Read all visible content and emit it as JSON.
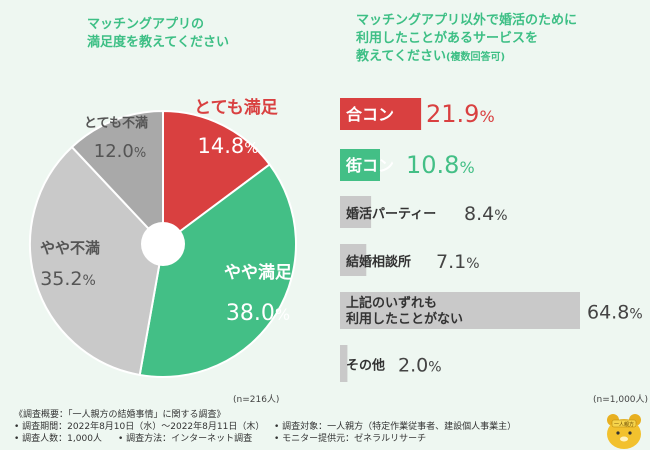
{
  "pie": {
    "title": "マッチングアプリの\n満足度を教えてください",
    "n_note": "(n=216人)",
    "slices": [
      {
        "label": "とても満足",
        "value_num": "14.8",
        "value_pct": "%",
        "value": 14.8,
        "color": "#d94040"
      },
      {
        "label": "やや満足",
        "value_num": "38.0",
        "value_pct": "%",
        "value": 38.0,
        "color": "#43bf86"
      },
      {
        "label": "やや不満",
        "value_num": "35.2",
        "value_pct": "%",
        "value": 35.2,
        "color": "#c9c9c9"
      },
      {
        "label": "とても不満",
        "value_num": "12.0",
        "value_pct": "%",
        "value": 12.0,
        "color": "#a9a9a9"
      }
    ]
  },
  "bars": {
    "title_main": "マッチングアプリ以外で婚活のために\n利用したことがあるサービスを\n教えてください",
    "title_note": "(複数回答可)",
    "n_note": "(n=1,000人)",
    "items": [
      {
        "label": "合コン",
        "value_num": "21.9",
        "value_pct": "%",
        "value": 21.9,
        "color": "#d94040",
        "highlight": true
      },
      {
        "label": "街コン",
        "value_num": "10.8",
        "value_pct": "%",
        "value": 10.8,
        "color": "#43bf86",
        "highlight": true
      },
      {
        "label": "婚活パーティー",
        "value_num": "8.4",
        "value_pct": "%",
        "value": 8.4,
        "color": "#c9c9c9",
        "highlight": false
      },
      {
        "label": "結婚相談所",
        "value_num": "7.1",
        "value_pct": "%",
        "value": 7.1,
        "color": "#c9c9c9",
        "highlight": false
      },
      {
        "label": "上記のいずれも\n利用したことがない",
        "value_num": "64.8",
        "value_pct": "%",
        "value": 64.8,
        "color": "#c9c9c9",
        "highlight": false
      },
      {
        "label": "その他",
        "value_num": "2.0",
        "value_pct": "%",
        "value": 2.0,
        "color": "#c9c9c9",
        "highlight": false
      }
    ]
  },
  "chart_data": [
    {
      "type": "pie",
      "title": "マッチングアプリの満足度を教えてください",
      "categories": [
        "とても満足",
        "やや満足",
        "やや不満",
        "とても不満"
      ],
      "values": [
        14.8,
        38.0,
        35.2,
        12.0
      ],
      "colors": [
        "#d94040",
        "#43bf86",
        "#c9c9c9",
        "#a9a9a9"
      ],
      "note": "(n=216人)"
    },
    {
      "type": "bar",
      "title": "マッチングアプリ以外で婚活のために利用したことがあるサービスを教えてください(複数回答可)",
      "categories": [
        "合コン",
        "街コン",
        "婚活パーティー",
        "結婚相談所",
        "上記のいずれも利用したことがない",
        "その他"
      ],
      "values": [
        21.9,
        10.8,
        8.4,
        7.1,
        64.8,
        2.0
      ],
      "note": "(n=1,000人)"
    }
  ],
  "footer": {
    "heading": "《調査概要：「一人親方の結婚事情」に関する調査》",
    "period": "• 調査期間：2022年8月10日（水）〜2022年8月11日（木）",
    "people": "• 調査人数：1,000人",
    "method": "• 調査方法：インターネット調査",
    "target": "• 調査対象：一人親方（特定作業従事者、建設個人事業主）",
    "provider": "• モニター提供元：ゼネラルリサーチ"
  },
  "mascot": {
    "text": "一人親方"
  }
}
